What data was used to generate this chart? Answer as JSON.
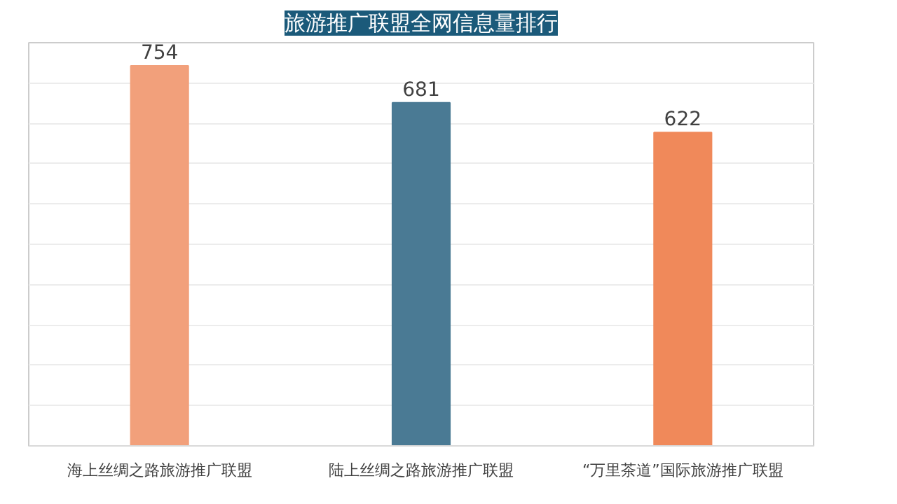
{
  "chart_data": {
    "type": "bar",
    "title": "旅游推广联盟全网信息量排行",
    "categories": [
      "海上丝绸之路旅游推广联盟",
      "陆上丝绸之路旅游推广联盟",
      "“万里茶道”国际旅游推广联盟"
    ],
    "values": [
      754,
      681,
      622
    ],
    "colors": [
      "#f2a07b",
      "#4a7a94",
      "#f0895a"
    ],
    "ylim": [
      0,
      800
    ],
    "yticks": [
      {
        "value": 0,
        "label": null
      },
      {
        "value": 80,
        "label": null
      },
      {
        "value": 160,
        "label": null
      },
      {
        "value": 240,
        "label": null
      },
      {
        "value": 320,
        "label": null
      },
      {
        "value": 400,
        "label": null
      },
      {
        "value": 480,
        "label": null
      },
      {
        "value": 560,
        "label": null
      },
      {
        "value": 640,
        "label": null
      },
      {
        "value": 720,
        "label": null
      }
    ],
    "grid": "y",
    "tick_labels": "x",
    "data_labels": true
  }
}
